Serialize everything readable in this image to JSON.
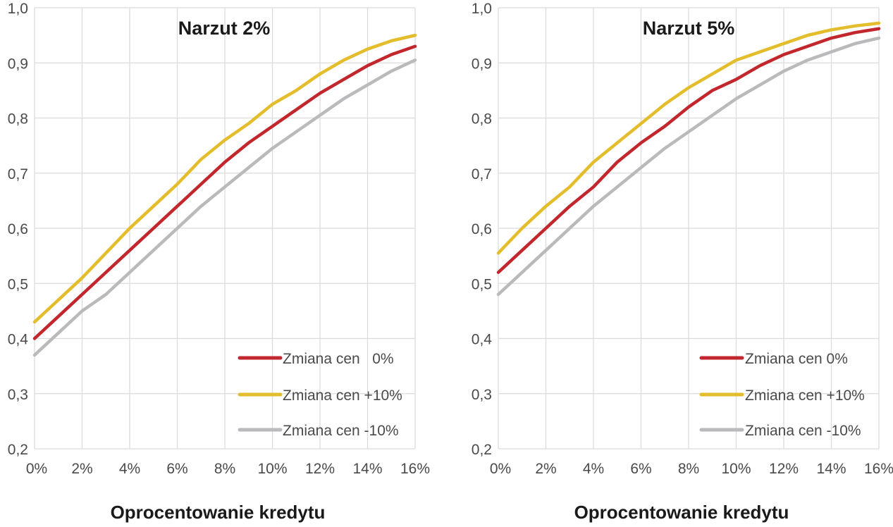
{
  "chart_data": [
    {
      "type": "line",
      "title": "Narzut 2%",
      "xlabel": "Oprocentowanie kredytu",
      "ylabel": "",
      "x": [
        0,
        1,
        2,
        3,
        4,
        5,
        6,
        7,
        8,
        9,
        10,
        11,
        12,
        13,
        14,
        15,
        16
      ],
      "x_tick_values": [
        0,
        2,
        4,
        6,
        8,
        10,
        12,
        14,
        16
      ],
      "x_tick_labels": [
        "0%",
        "2%",
        "4%",
        "6%",
        "8%",
        "10%",
        "12%",
        "14%",
        "16%"
      ],
      "y_tick_values": [
        0.2,
        0.3,
        0.4,
        0.5,
        0.6,
        0.7,
        0.8,
        0.9,
        1.0
      ],
      "y_tick_labels": [
        "0,2",
        "0,3",
        "0,4",
        "0,5",
        "0,6",
        "0,7",
        "0,8",
        "0,9",
        "1,0"
      ],
      "xlim": [
        0,
        16
      ],
      "ylim": [
        0.2,
        1.0
      ],
      "grid": true,
      "legend_position": "bottom-right",
      "series": [
        {
          "name": "Zmiana cen   0%",
          "color": "#c1272d",
          "values": [
            0.4,
            0.44,
            0.48,
            0.52,
            0.56,
            0.6,
            0.64,
            0.68,
            0.72,
            0.755,
            0.785,
            0.815,
            0.845,
            0.87,
            0.895,
            0.915,
            0.93
          ]
        },
        {
          "name": "Zmiana cen +10%",
          "color": "#e3bd2b",
          "values": [
            0.43,
            0.47,
            0.51,
            0.555,
            0.6,
            0.64,
            0.68,
            0.725,
            0.76,
            0.79,
            0.825,
            0.85,
            0.88,
            0.905,
            0.925,
            0.94,
            0.95
          ]
        },
        {
          "name": "Zmiana cen -10%",
          "color": "#bababc",
          "values": [
            0.37,
            0.41,
            0.45,
            0.48,
            0.52,
            0.56,
            0.6,
            0.64,
            0.675,
            0.71,
            0.745,
            0.775,
            0.805,
            0.835,
            0.86,
            0.885,
            0.905
          ]
        }
      ]
    },
    {
      "type": "line",
      "title": "Narzut 5%",
      "xlabel": "Oprocentowanie kredytu",
      "ylabel": "",
      "x": [
        0,
        1,
        2,
        3,
        4,
        5,
        6,
        7,
        8,
        9,
        10,
        11,
        12,
        13,
        14,
        15,
        16
      ],
      "x_tick_values": [
        0,
        2,
        4,
        6,
        8,
        10,
        12,
        14,
        16
      ],
      "x_tick_labels": [
        "0%",
        "2%",
        "4%",
        "6%",
        "8%",
        "10%",
        "12%",
        "14%",
        "16%"
      ],
      "y_tick_values": [
        0.2,
        0.3,
        0.4,
        0.5,
        0.6,
        0.7,
        0.8,
        0.9,
        1.0
      ],
      "y_tick_labels": [
        "0,2",
        "0,3",
        "0,4",
        "0,5",
        "0,6",
        "0,7",
        "0,8",
        "0,9",
        "1,0"
      ],
      "xlim": [
        0,
        16
      ],
      "ylim": [
        0.2,
        1.0
      ],
      "grid": true,
      "legend_position": "bottom-right",
      "series": [
        {
          "name": "Zmiana cen 0%",
          "color": "#c1272d",
          "values": [
            0.52,
            0.56,
            0.6,
            0.64,
            0.675,
            0.72,
            0.755,
            0.785,
            0.82,
            0.85,
            0.87,
            0.895,
            0.915,
            0.93,
            0.945,
            0.955,
            0.962
          ]
        },
        {
          "name": "Zmiana cen +10%",
          "color": "#e3bd2b",
          "values": [
            0.555,
            0.6,
            0.64,
            0.675,
            0.72,
            0.755,
            0.79,
            0.825,
            0.855,
            0.88,
            0.905,
            0.92,
            0.935,
            0.95,
            0.96,
            0.967,
            0.972
          ]
        },
        {
          "name": "Zmiana cen -10%",
          "color": "#bababc",
          "values": [
            0.48,
            0.52,
            0.56,
            0.6,
            0.64,
            0.675,
            0.71,
            0.745,
            0.775,
            0.805,
            0.835,
            0.86,
            0.885,
            0.905,
            0.92,
            0.935,
            0.945
          ]
        }
      ]
    }
  ]
}
